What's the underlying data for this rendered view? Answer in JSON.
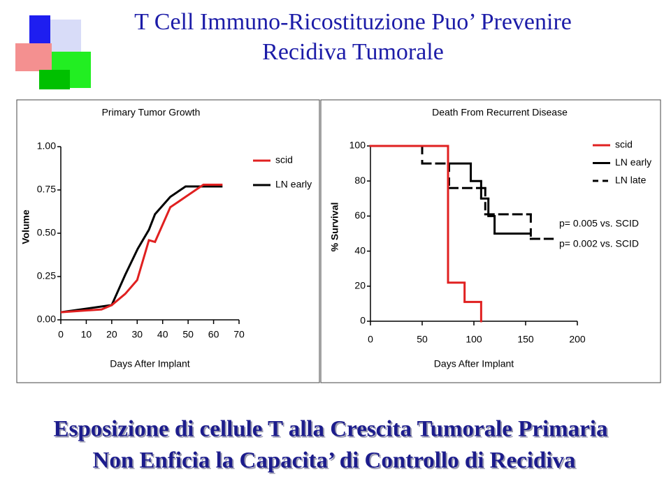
{
  "title": [
    "T Cell Immuno-Ricostituzione Puo’ Prevenire",
    "Recidiva Tumorale"
  ],
  "caption": [
    "Esposizione di cellule T alla Crescita Tumorale Primaria",
    "Non Enficia la Capacita’ di Controllo di Recidiva"
  ],
  "chart_data": [
    {
      "type": "line",
      "title": "Primary Tumor Growth",
      "x_label": "Days After Implant",
      "y_label": "Volume",
      "xlim": [
        0,
        70
      ],
      "xticks": [
        0,
        10,
        20,
        30,
        40,
        50,
        60,
        70
      ],
      "ylim": [
        0,
        1
      ],
      "yticks": [
        {
          "value": 0,
          "label": "0.00"
        },
        {
          "value": 0.25,
          "label": "0.25"
        },
        {
          "value": 0.5,
          "label": "0.50"
        },
        {
          "value": 0.75,
          "label": "0.75"
        },
        {
          "value": 1,
          "label": "1.00"
        }
      ],
      "legend": "right",
      "series": [
        {
          "name": "scid",
          "color": "#e02020",
          "x": [
            0,
            16,
            20,
            25.3,
            30,
            34.6,
            37,
            43,
            49,
            56,
            63.5
          ],
          "values": [
            0.044,
            0.06,
            0.085,
            0.15,
            0.23,
            0.46,
            0.45,
            0.65,
            0.71,
            0.78,
            0.78
          ]
        },
        {
          "name": "LN early",
          "color": "#000000",
          "x": [
            0,
            20,
            25.3,
            30.2,
            34.6,
            37,
            43,
            49,
            56,
            63.5
          ],
          "values": [
            0.044,
            0.085,
            0.26,
            0.41,
            0.52,
            0.61,
            0.71,
            0.77,
            0.77,
            0.77
          ]
        }
      ]
    },
    {
      "type": "step",
      "title": "Death From Recurrent Disease",
      "x_label": "Days After Implant",
      "y_label": "% Survival",
      "xlim": [
        0,
        200
      ],
      "xticks": [
        0,
        50,
        100,
        150,
        200
      ],
      "ylim": [
        0,
        100
      ],
      "yticks": [
        0,
        20,
        40,
        60,
        80,
        100
      ],
      "legend": "upper right",
      "annotations": [
        "p= 0.005 vs. SCID",
        "p= 0.002 vs. SCID"
      ],
      "series": [
        {
          "name": "scid",
          "color": "#e02020",
          "x": [
            0,
            75,
            91,
            107
          ],
          "values": [
            100,
            22,
            11,
            0
          ]
        },
        {
          "name": "LN early",
          "color": "#000000",
          "x": [
            0,
            75,
            97,
            107,
            114,
            120,
            153
          ],
          "values": [
            100,
            90,
            80,
            70,
            60,
            50,
            50
          ]
        },
        {
          "name": "LN late",
          "color": "#000000",
          "dashed": true,
          "x": [
            0,
            50,
            76,
            111,
            155,
            176
          ],
          "values": [
            100,
            90,
            76,
            61,
            47,
            47
          ]
        }
      ]
    }
  ]
}
